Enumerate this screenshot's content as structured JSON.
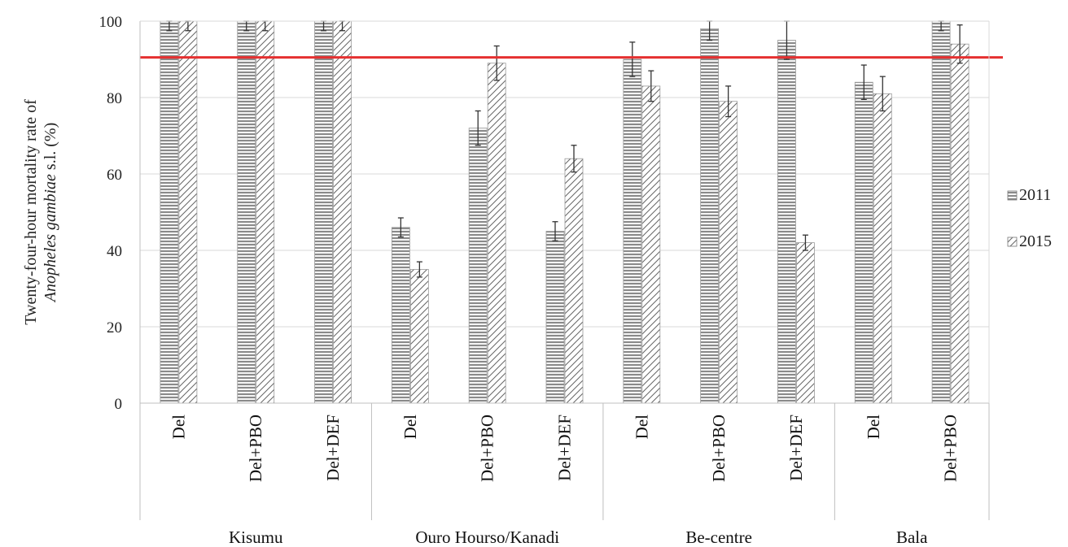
{
  "chart_data": {
    "type": "bar",
    "ylabel_parts": [
      "Twenty-four-hour mortality rate of",
      "Anopheles gambiae",
      " s.l. (%)"
    ],
    "ylim": [
      0,
      100
    ],
    "yticks": [
      "0",
      "20",
      "40",
      "60",
      "80",
      "100"
    ],
    "grid": true,
    "legend_position": "right",
    "threshold_line": {
      "value": 90.5,
      "color": "#e53030"
    },
    "groups": [
      {
        "name": "Kisumu",
        "categories": [
          "Del",
          "Del+PBO",
          "Del+DEF"
        ]
      },
      {
        "name": "Ouro Hourso/Kanadi",
        "categories": [
          "Del",
          "Del+PBO",
          "Del+DEF"
        ]
      },
      {
        "name": "Be-centre",
        "categories": [
          "Del",
          "Del+PBO",
          "Del+DEF"
        ]
      },
      {
        "name": "Bala",
        "categories": [
          "Del",
          "Del+PBO"
        ]
      }
    ],
    "series": [
      {
        "name": "2011",
        "pattern": "horizontal-lines",
        "values": [
          100,
          100,
          100,
          46,
          72,
          45,
          90,
          98,
          95,
          84,
          100
        ],
        "errors": [
          2.5,
          2.5,
          2.5,
          2.5,
          4.5,
          2.5,
          4.5,
          3,
          5,
          4.5,
          2.5
        ]
      },
      {
        "name": "2015",
        "pattern": "diagonal-hatch",
        "values": [
          100,
          100,
          100,
          35,
          89,
          64,
          83,
          79,
          42,
          81,
          94
        ],
        "errors": [
          2.5,
          2.5,
          2.5,
          2,
          4.5,
          3.5,
          4,
          4,
          2,
          4.5,
          5
        ]
      }
    ]
  }
}
